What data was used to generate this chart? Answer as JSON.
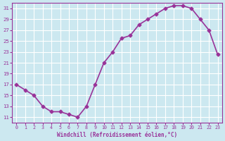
{
  "x": [
    0,
    1,
    2,
    3,
    4,
    5,
    6,
    7,
    8,
    9,
    10,
    11,
    12,
    13,
    14,
    15,
    16,
    17,
    18,
    19,
    20,
    21,
    22,
    23
  ],
  "y": [
    17,
    16,
    15,
    13,
    12,
    12,
    11.5,
    11,
    13,
    17,
    21,
    23,
    25.5,
    26,
    28,
    29,
    30,
    31,
    31.5,
    31.5,
    31,
    29,
    27,
    22.5
  ],
  "xlim": [
    -0.5,
    23.5
  ],
  "ylim": [
    10,
    32
  ],
  "yticks": [
    11,
    13,
    15,
    17,
    19,
    21,
    23,
    25,
    27,
    29,
    31
  ],
  "xticks": [
    0,
    1,
    2,
    3,
    4,
    5,
    6,
    7,
    8,
    9,
    10,
    11,
    12,
    13,
    14,
    15,
    16,
    17,
    18,
    19,
    20,
    21,
    22,
    23
  ],
  "xlabel": "Windchill (Refroidissement éolien,°C)",
  "line_color": "#993399",
  "marker": "D",
  "marker_size": 2.5,
  "bg_color": "#cce8f0",
  "grid_color": "#ffffff",
  "xlabel_color": "#993399",
  "tick_color": "#993399",
  "linewidth": 1.2
}
